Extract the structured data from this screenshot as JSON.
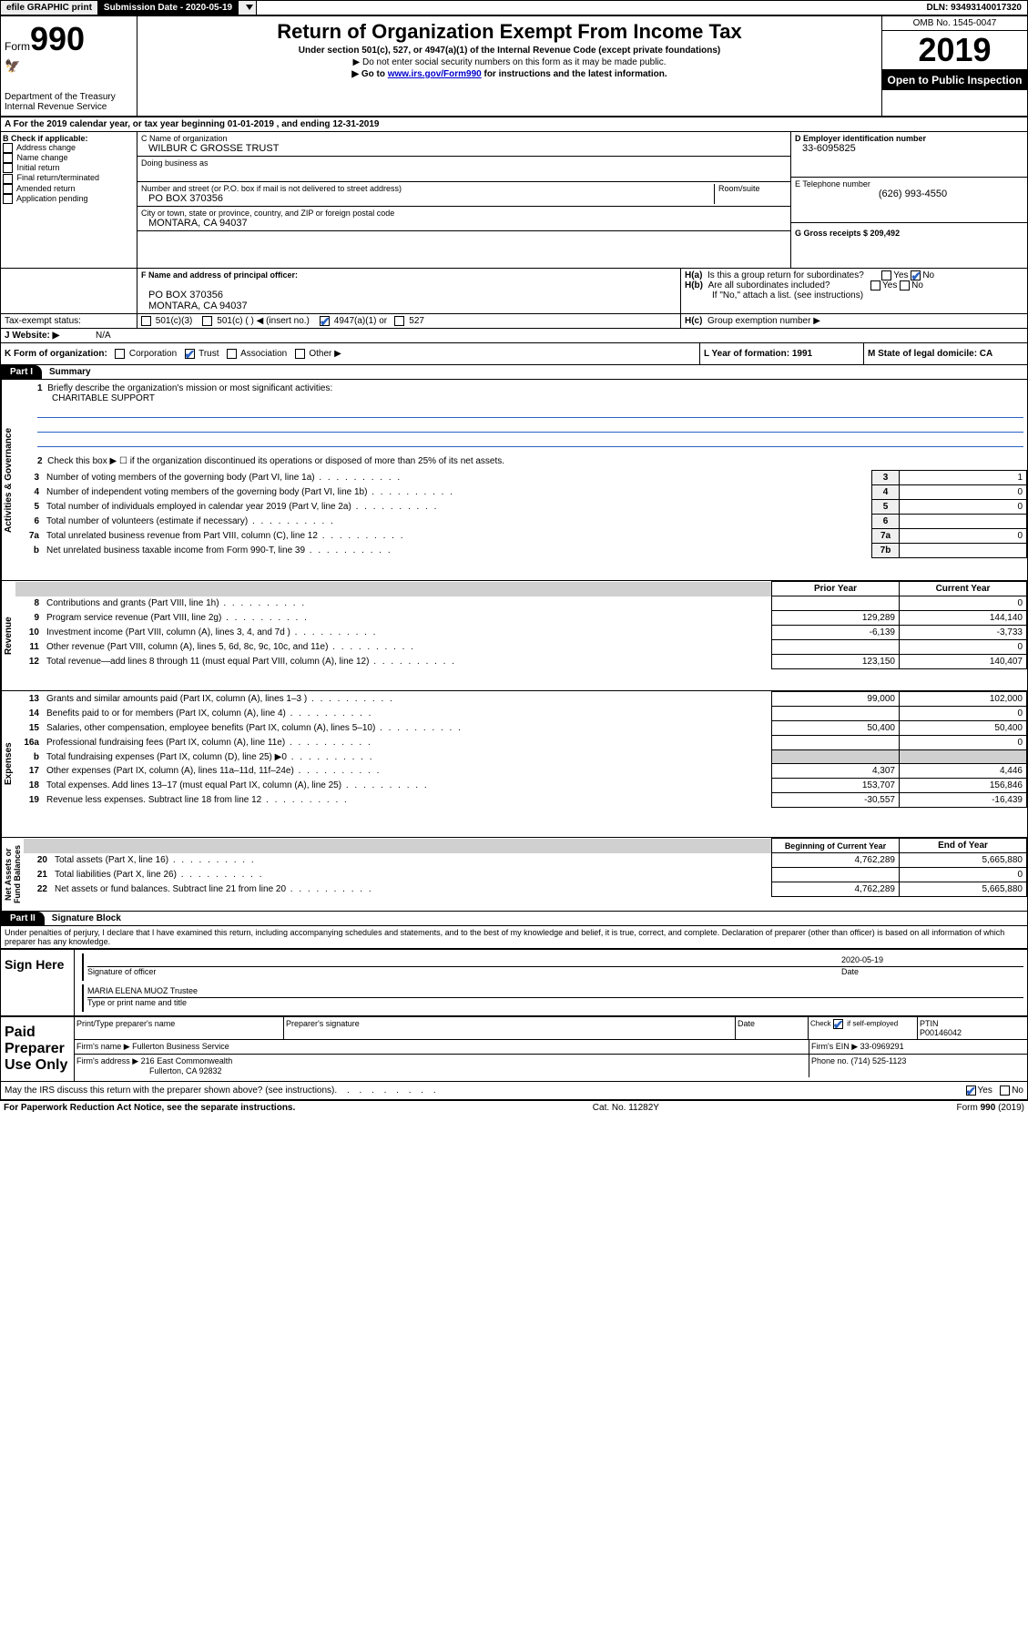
{
  "topbar": {
    "efile": "efile GRAPHIC print",
    "submission_label": "Submission Date - 2020-05-19",
    "dln": "DLN: 93493140017320"
  },
  "header": {
    "form_label": "Form",
    "form_number": "990",
    "dept": "Department of the Treasury",
    "irs": "Internal Revenue Service",
    "title": "Return of Organization Exempt From Income Tax",
    "subtitle": "Under section 501(c), 527, or 4947(a)(1) of the Internal Revenue Code (except private foundations)",
    "note1": "▶ Do not enter social security numbers on this form as it may be made public.",
    "note2_pre": "▶ Go to ",
    "note2_link": "www.irs.gov/Form990",
    "note2_post": " for instructions and the latest information.",
    "omb": "OMB No. 1545-0047",
    "year": "2019",
    "open": "Open to Public Inspection"
  },
  "section_a": "A For the 2019 calendar year, or tax year beginning 01-01-2019    , and ending 12-31-2019",
  "section_b": {
    "title": "B Check if applicable:",
    "opts": [
      "Address change",
      "Name change",
      "Initial return",
      "Final return/terminated",
      "Amended return",
      "Application pending"
    ]
  },
  "section_c": {
    "name_label": "C Name of organization",
    "name_value": "WILBUR C GROSSE TRUST",
    "dba_label": "Doing business as",
    "addr_label": "Number and street (or P.O. box if mail is not delivered to street address)",
    "room_label": "Room/suite",
    "addr_value": "PO BOX 370356",
    "city_label": "City or town, state or province, country, and ZIP or foreign postal code",
    "city_value": "MONTARA, CA  94037"
  },
  "right_col": {
    "d_label": "D Employer identification number",
    "d_value": "33-6095825",
    "e_label": "E Telephone number",
    "e_value": "(626) 993-4550",
    "g_label": "G Gross receipts $ 209,492"
  },
  "section_f": {
    "label": "F  Name and address of principal officer:",
    "line1": "PO BOX 370356",
    "line2": "MONTARA, CA  94037"
  },
  "section_h": {
    "ha": "Is this a group return for subordinates?",
    "hb": "Are all subordinates included?",
    "hb_note": "If \"No,\" attach a list. (see instructions)",
    "hc": "Group exemption number ▶"
  },
  "tax_exempt": {
    "label": "Tax-exempt status:",
    "opt1": "501(c)(3)",
    "opt2": "501(c) (  ) ◀ (insert no.)",
    "opt3": "4947(a)(1) or",
    "opt4": "527"
  },
  "website": {
    "label": "J   Website: ▶",
    "value": "N/A"
  },
  "section_k": {
    "label": "K Form of organization:",
    "opts": [
      "Corporation",
      "Trust",
      "Association",
      "Other ▶"
    ],
    "l_label": "L Year of formation: 1991",
    "m_label": "M State of legal domicile: CA"
  },
  "part1": {
    "title": "Part I",
    "heading": "Summary",
    "vlabel1": "Activities & Governance",
    "vlabel2": "Revenue",
    "vlabel3": "Expenses",
    "vlabel4": "Net Assets or Fund Balances",
    "q1": "Briefly describe the organization's mission or most significant activities:",
    "q1_value": "CHARITABLE SUPPORT",
    "q2": "Check this box ▶ ☐  if the organization discontinued its operations or disposed of more than 25% of its net assets.",
    "rows_gov": [
      {
        "n": "3",
        "t": "Number of voting members of the governing body (Part VI, line 1a)",
        "box": "3",
        "v": "1"
      },
      {
        "n": "4",
        "t": "Number of independent voting members of the governing body (Part VI, line 1b)",
        "box": "4",
        "v": "0"
      },
      {
        "n": "5",
        "t": "Total number of individuals employed in calendar year 2019 (Part V, line 2a)",
        "box": "5",
        "v": "0"
      },
      {
        "n": "6",
        "t": "Total number of volunteers (estimate if necessary)",
        "box": "6",
        "v": ""
      },
      {
        "n": "7a",
        "t": "Total unrelated business revenue from Part VIII, column (C), line 12",
        "box": "7a",
        "v": "0"
      },
      {
        "n": "b",
        "t": "Net unrelated business taxable income from Form 990-T, line 39",
        "box": "7b",
        "v": ""
      }
    ],
    "col_headers": [
      "Prior Year",
      "Current Year"
    ],
    "rows_rev": [
      {
        "n": "8",
        "t": "Contributions and grants (Part VIII, line 1h)",
        "p": "",
        "c": "0"
      },
      {
        "n": "9",
        "t": "Program service revenue (Part VIII, line 2g)",
        "p": "129,289",
        "c": "144,140"
      },
      {
        "n": "10",
        "t": "Investment income (Part VIII, column (A), lines 3, 4, and 7d )",
        "p": "-6,139",
        "c": "-3,733"
      },
      {
        "n": "11",
        "t": "Other revenue (Part VIII, column (A), lines 5, 6d, 8c, 9c, 10c, and 11e)",
        "p": "",
        "c": "0"
      },
      {
        "n": "12",
        "t": "Total revenue—add lines 8 through 11 (must equal Part VIII, column (A), line 12)",
        "p": "123,150",
        "c": "140,407"
      }
    ],
    "rows_exp": [
      {
        "n": "13",
        "t": "Grants and similar amounts paid (Part IX, column (A), lines 1–3 )",
        "p": "99,000",
        "c": "102,000"
      },
      {
        "n": "14",
        "t": "Benefits paid to or for members (Part IX, column (A), line 4)",
        "p": "",
        "c": "0"
      },
      {
        "n": "15",
        "t": "Salaries, other compensation, employee benefits (Part IX, column (A), lines 5–10)",
        "p": "50,400",
        "c": "50,400"
      },
      {
        "n": "16a",
        "t": "Professional fundraising fees (Part IX, column (A), line 11e)",
        "p": "",
        "c": "0"
      },
      {
        "n": "b",
        "t": "Total fundraising expenses (Part IX, column (D), line 25) ▶0",
        "p": "gray",
        "c": "gray"
      },
      {
        "n": "17",
        "t": "Other expenses (Part IX, column (A), lines 11a–11d, 11f–24e)",
        "p": "4,307",
        "c": "4,446"
      },
      {
        "n": "18",
        "t": "Total expenses. Add lines 13–17 (must equal Part IX, column (A), line 25)",
        "p": "153,707",
        "c": "156,846"
      },
      {
        "n": "19",
        "t": "Revenue less expenses. Subtract line 18 from line 12",
        "p": "-30,557",
        "c": "-16,439"
      }
    ],
    "col_headers2": [
      "Beginning of Current Year",
      "End of Year"
    ],
    "rows_net": [
      {
        "n": "20",
        "t": "Total assets (Part X, line 16)",
        "p": "4,762,289",
        "c": "5,665,880"
      },
      {
        "n": "21",
        "t": "Total liabilities (Part X, line 26)",
        "p": "",
        "c": "0"
      },
      {
        "n": "22",
        "t": "Net assets or fund balances. Subtract line 21 from line 20",
        "p": "4,762,289",
        "c": "5,665,880"
      }
    ]
  },
  "part2": {
    "title": "Part II",
    "heading": "Signature Block",
    "perjury": "Under penalties of perjury, I declare that I have examined this return, including accompanying schedules and statements, and to the best of my knowledge and belief, it is true, correct, and complete. Declaration of preparer (other than officer) is based on all information of which preparer has any knowledge.",
    "sign_here": "Sign Here",
    "sig_officer": "Signature of officer",
    "date_val": "2020-05-19",
    "date_lbl": "Date",
    "name_val": "MARIA ELENA MUOZ  Trustee",
    "name_lbl": "Type or print name and title",
    "paid": "Paid Preparer Use Only",
    "prep_name_lbl": "Print/Type preparer's name",
    "prep_sig_lbl": "Preparer's signature",
    "check_lbl": "Check ☑ if self-employed",
    "ptin_lbl": "PTIN",
    "ptin_val": "P00146042",
    "firm_name_lbl": "Firm's name    ▶",
    "firm_name_val": "Fullerton Business Service",
    "firm_ein": "Firm's EIN ▶ 33-0969291",
    "firm_addr_lbl": "Firm's address ▶",
    "firm_addr_val": "216 East Commonwealth",
    "firm_addr_val2": "Fullerton, CA  92832",
    "phone": "Phone no. (714) 525-1123",
    "discuss": "May the IRS discuss this return with the preparer shown above? (see instructions)"
  },
  "footer": {
    "left": "For Paperwork Reduction Act Notice, see the separate instructions.",
    "center": "Cat. No. 11282Y",
    "right": "Form 990 (2019)"
  }
}
